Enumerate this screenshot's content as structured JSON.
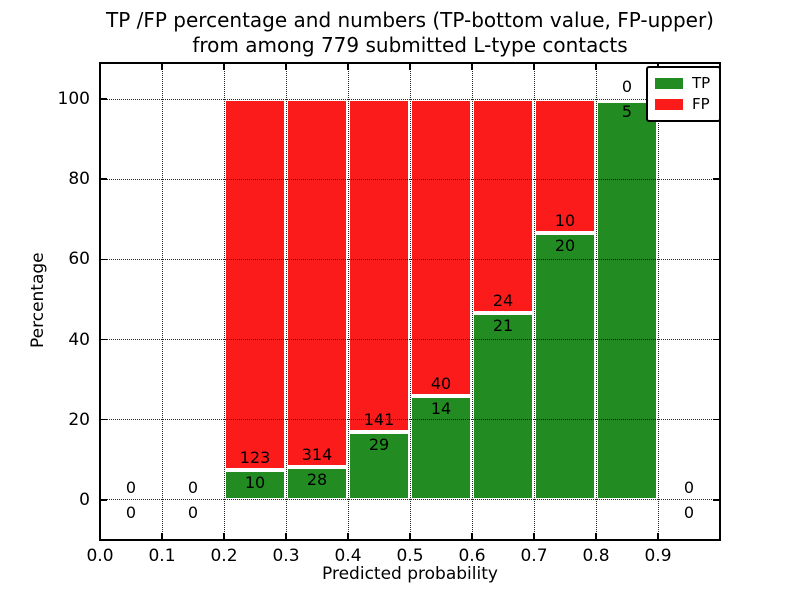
{
  "title": {
    "line1": "TP /FP percentage and numbers (TP-bottom value, FP-upper)",
    "line2": "from among 779 submitted L-type contacts"
  },
  "axes": {
    "xlabel": "Predicted probability",
    "ylabel": "Percentage",
    "x_tick_values": [
      0.0,
      0.1,
      0.2,
      0.3,
      0.4,
      0.5,
      0.6,
      0.7,
      0.8,
      0.9
    ],
    "x_tick_labels": [
      "0.0",
      "0.1",
      "0.2",
      "0.3",
      "0.4",
      "0.5",
      "0.6",
      "0.7",
      "0.8",
      "0.9"
    ],
    "y_tick_values": [
      0,
      20,
      40,
      60,
      80,
      100
    ],
    "y_tick_labels": [
      "0",
      "20",
      "40",
      "60",
      "80",
      "100"
    ],
    "xlim": [
      0.0,
      1.0
    ],
    "ylim": [
      -10,
      109
    ],
    "grid": "dotted"
  },
  "legend": {
    "position": "upper-right",
    "items": [
      {
        "label": "TP",
        "color_key": "tp"
      },
      {
        "label": "FP",
        "color_key": "fp"
      }
    ]
  },
  "colors": {
    "tp": "#228b22",
    "fp": "#fc1b1b",
    "bar_edge": "#ffffff",
    "grid": "#000000",
    "text": "#000000",
    "background": "#ffffff"
  },
  "chart_data": {
    "type": "bar",
    "stacked": true,
    "normalized_to_percent": true,
    "title": "TP /FP percentage and numbers (TP-bottom value, FP-upper) from among 779 submitted L-type contacts",
    "xlabel": "Predicted probability",
    "ylabel": "Percentage",
    "bin_edges": [
      0.0,
      0.1,
      0.2,
      0.3,
      0.4,
      0.5,
      0.6,
      0.7,
      0.8,
      0.9,
      1.0
    ],
    "series": [
      {
        "name": "TP",
        "position": "bottom",
        "counts": [
          0,
          0,
          10,
          28,
          29,
          14,
          21,
          20,
          5,
          0
        ]
      },
      {
        "name": "FP",
        "position": "upper",
        "counts": [
          0,
          0,
          123,
          314,
          141,
          40,
          24,
          10,
          0,
          0
        ]
      }
    ],
    "total_submitted": 779,
    "ylim": [
      -10,
      109
    ],
    "xlim": [
      0.0,
      1.0
    ]
  }
}
